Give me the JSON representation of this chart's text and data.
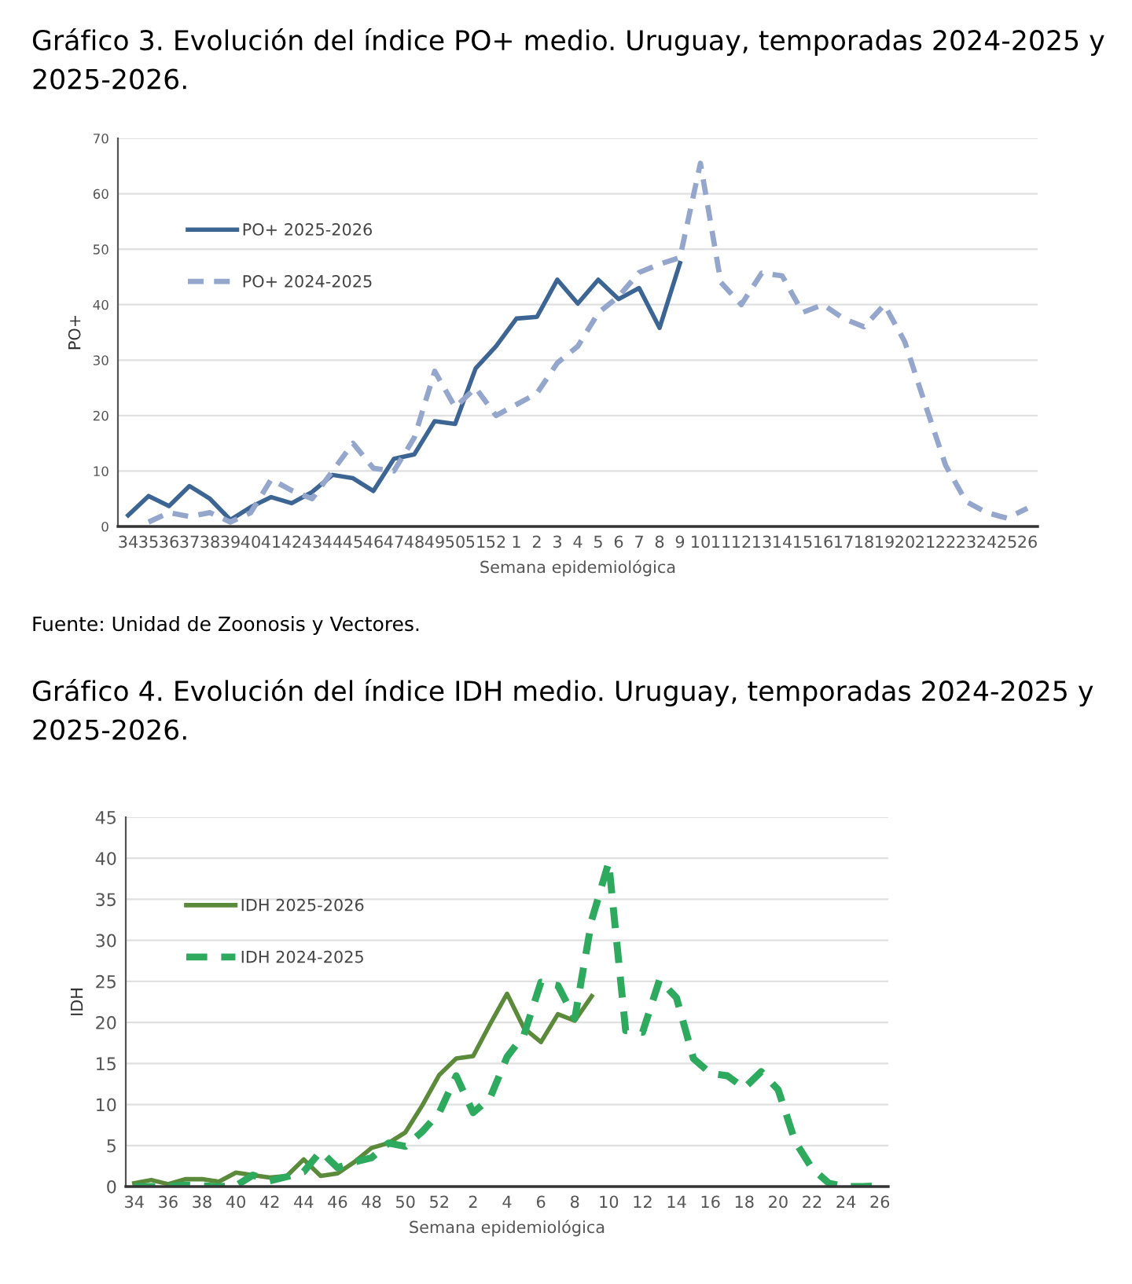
{
  "chart_data": [
    {
      "type": "line",
      "title": "Gráfico 3. Evolución del índice PO+ medio. Uruguay, temporadas 2024-2025 y 2025-2026.",
      "xlabel": "Semana epidemiológica",
      "ylabel": "PO+",
      "categories": [
        "34",
        "35",
        "36",
        "37",
        "38",
        "39",
        "40",
        "41",
        "42",
        "43",
        "44",
        "45",
        "46",
        "47",
        "48",
        "49",
        "50",
        "51",
        "52",
        "1",
        "2",
        "3",
        "4",
        "5",
        "6",
        "7",
        "8",
        "9",
        "10",
        "11",
        "12",
        "13",
        "14",
        "15",
        "16",
        "17",
        "18",
        "19",
        "20",
        "21",
        "22",
        "23",
        "24",
        "25",
        "26"
      ],
      "series": [
        {
          "name": "PO+ 2025-2026",
          "color": "#3d6594",
          "line_style": "solid",
          "values": [
            2,
            5.5,
            3.7,
            7.3,
            5,
            1.2,
            3.5,
            5.3,
            4.2,
            6.2,
            9.3,
            8.7,
            6.4,
            12.2,
            13,
            19,
            18.5,
            28.5,
            32.5,
            37.5,
            37.8,
            44.5,
            40.2,
            44.5,
            41,
            43,
            35.8,
            47.5,
            null,
            null,
            null,
            null,
            null,
            null,
            null,
            null,
            null,
            null,
            null,
            null,
            null,
            null,
            null,
            null,
            null
          ]
        },
        {
          "name": "PO+ 2024-2025",
          "color": "#94a6cc",
          "line_style": "dashed",
          "values": [
            null,
            0.8,
            2.5,
            1.8,
            2.5,
            0.8,
            2.5,
            8.5,
            6.5,
            5,
            10,
            15,
            10.5,
            10,
            16,
            28,
            21.5,
            25,
            20,
            22,
            24,
            29.5,
            32.5,
            38.5,
            41.5,
            45.8,
            47.3,
            48.5,
            65.5,
            44,
            40,
            45.7,
            45.2,
            38.6,
            40,
            37.5,
            36,
            40,
            33.3,
            22,
            11,
            4.5,
            2.5,
            1.5,
            3.3
          ]
        }
      ],
      "ylim": [
        0,
        70
      ],
      "yticks": [
        0,
        10,
        20,
        30,
        40,
        50,
        60,
        70
      ],
      "grid": "y",
      "legend": "top left",
      "marker": "none",
      "annotations": [
        "Fuente: Unidad de Zoonosis y Vectores."
      ]
    },
    {
      "type": "line",
      "title": "Gráfico 4. Evolución del índice IDH medio. Uruguay, temporadas 2024-2025 y 2025-2026.",
      "xlabel": "Semana epidemiológica",
      "ylabel": "IDH",
      "categories": [
        "34",
        null,
        "36",
        null,
        "38",
        null,
        "40",
        null,
        "42",
        null,
        "44",
        null,
        "46",
        null,
        "48",
        null,
        "50",
        null,
        "52",
        null,
        "2",
        null,
        "4",
        null,
        "6",
        null,
        "8",
        null,
        "10",
        null,
        "12",
        null,
        "14",
        null,
        "16",
        null,
        "18",
        null,
        "20",
        null,
        "22",
        null,
        "24",
        null,
        "26"
      ],
      "series": [
        {
          "name": "IDH 2025-2026",
          "color": "#5a8a3a",
          "line_style": "solid",
          "values": [
            0.4,
            0.8,
            0.3,
            0.9,
            0.9,
            0.6,
            1.7,
            1.4,
            1.1,
            1.3,
            3.3,
            1.3,
            1.6,
            3.0,
            4.7,
            5.3,
            6.6,
            9.9,
            13.6,
            15.6,
            15.9,
            19.8,
            23.5,
            19.3,
            17.6,
            21,
            20.2,
            23.2,
            null,
            null,
            null,
            null,
            null,
            null,
            null,
            null,
            null,
            null,
            null,
            null,
            null,
            null,
            null,
            null,
            null
          ]
        },
        {
          "name": "IDH 2024-2025",
          "color": "#2eaa5e",
          "line_style": "dashed",
          "values": [
            0,
            0,
            0,
            0.2,
            0.1,
            0,
            0.1,
            1.4,
            0.7,
            1.2,
            1.8,
            4.3,
            2.3,
            3.0,
            3.5,
            5.3,
            4.9,
            6.7,
            9,
            13.5,
            9,
            10.8,
            15.8,
            18.5,
            24.9,
            24.5,
            20.5,
            32.5,
            39.5,
            19,
            18.8,
            25.2,
            23,
            15.6,
            13.8,
            13.5,
            12,
            14,
            11.8,
            5.5,
            2.2,
            0.4,
            0,
            0,
            0.1
          ]
        }
      ],
      "ylim": [
        0,
        45
      ],
      "yticks": [
        0,
        5,
        10,
        15,
        20,
        25,
        30,
        35,
        40,
        45
      ],
      "grid": "y",
      "legend": "top left",
      "marker": "none"
    }
  ]
}
